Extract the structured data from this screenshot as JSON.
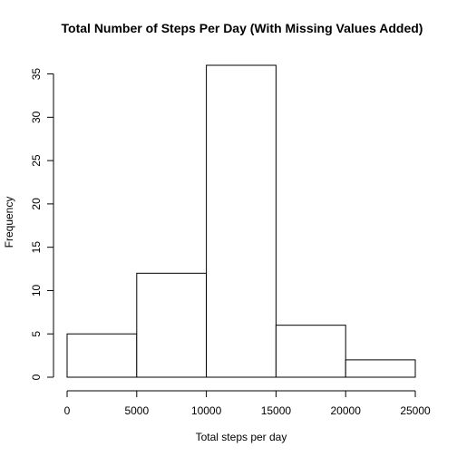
{
  "chart_data": {
    "type": "bar",
    "title": "Total Number of Steps Per Day (With Missing Values Added)",
    "xlabel": "Total steps per day",
    "ylabel": "Frequency",
    "bins": [
      {
        "from": 0,
        "to": 5000,
        "count": 5
      },
      {
        "from": 5000,
        "to": 10000,
        "count": 12
      },
      {
        "from": 10000,
        "to": 15000,
        "count": 36
      },
      {
        "from": 15000,
        "to": 20000,
        "count": 6
      },
      {
        "from": 20000,
        "to": 25000,
        "count": 2
      }
    ],
    "xlim": [
      0,
      25000
    ],
    "ylim": [
      0,
      36
    ],
    "x_ticks": [
      0,
      5000,
      10000,
      15000,
      20000,
      25000
    ],
    "y_ticks": [
      0,
      5,
      10,
      15,
      20,
      25,
      30,
      35
    ],
    "grid": false,
    "legend": "none"
  }
}
